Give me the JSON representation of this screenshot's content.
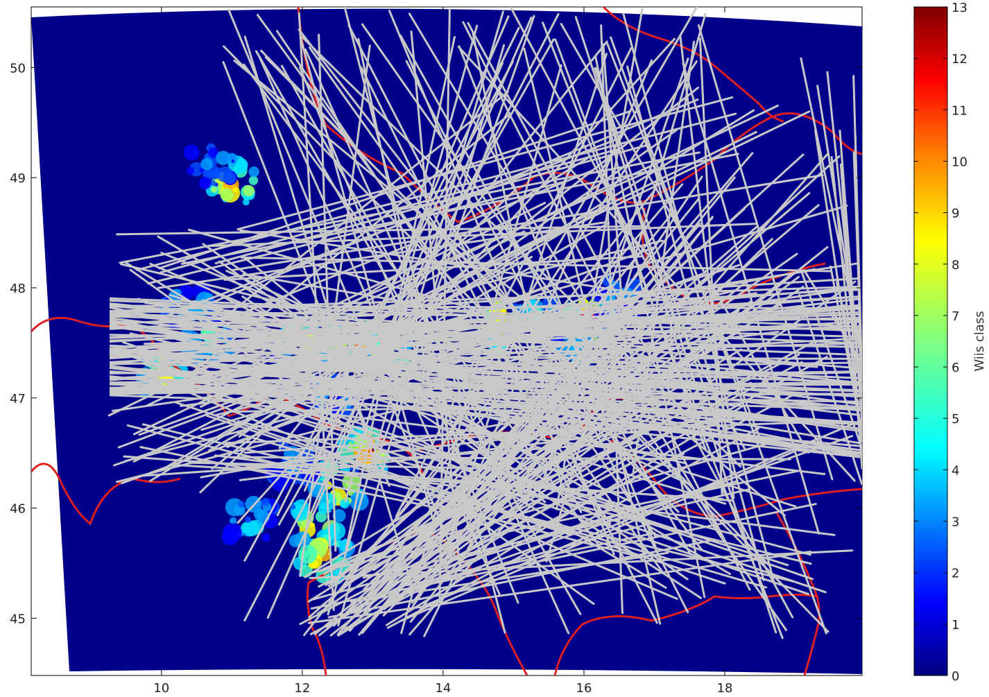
{
  "map": {
    "x_axis": {
      "tick_labels": [
        "10",
        "12",
        "14",
        "16",
        "18"
      ],
      "tick_values": [
        10,
        12,
        14,
        16,
        18
      ],
      "range": [
        8.15,
        19.95
      ]
    },
    "y_axis": {
      "tick_labels": [
        "45",
        "46",
        "47",
        "48",
        "49",
        "50"
      ],
      "tick_values": [
        45,
        46,
        47,
        48,
        49,
        50
      ],
      "range": [
        44.48,
        50.55
      ]
    },
    "background_color": "#00008b",
    "border_color": "#e02020",
    "track_color": "#c8c8c8",
    "grid": false
  },
  "colorbar": {
    "label": "Wiis class",
    "tick_labels": [
      "0",
      "1",
      "2",
      "3",
      "4",
      "5",
      "6",
      "7",
      "8",
      "9",
      "10",
      "11",
      "12",
      "13"
    ],
    "range": [
      0,
      13
    ],
    "colormap": "jet",
    "stops": [
      "#00007f",
      "#0000ff",
      "#007fff",
      "#00ffff",
      "#7fff7f",
      "#ffff00",
      "#ff7f00",
      "#ff0000",
      "#7f0000"
    ]
  },
  "precipitation_cells": [
    {
      "lon": 11.0,
      "lat": 48.95,
      "class": 10
    },
    {
      "lon": 10.75,
      "lat": 49.1,
      "class": 4
    },
    {
      "lon": 10.4,
      "lat": 47.8,
      "class": 5
    },
    {
      "lon": 10.05,
      "lat": 47.2,
      "class": 9
    },
    {
      "lon": 10.7,
      "lat": 47.55,
      "class": 7
    },
    {
      "lon": 12.0,
      "lat": 47.5,
      "class": 9
    },
    {
      "lon": 12.7,
      "lat": 47.5,
      "class": 11
    },
    {
      "lon": 13.2,
      "lat": 47.4,
      "class": 8
    },
    {
      "lon": 12.4,
      "lat": 47.05,
      "class": 4
    },
    {
      "lon": 12.9,
      "lat": 46.5,
      "class": 11
    },
    {
      "lon": 12.5,
      "lat": 46.2,
      "class": 10
    },
    {
      "lon": 12.2,
      "lat": 45.85,
      "class": 9
    },
    {
      "lon": 12.3,
      "lat": 45.55,
      "class": 10
    },
    {
      "lon": 11.9,
      "lat": 46.4,
      "class": 4
    },
    {
      "lon": 14.9,
      "lat": 47.65,
      "class": 11
    },
    {
      "lon": 15.35,
      "lat": 47.7,
      "class": 7
    },
    {
      "lon": 16.1,
      "lat": 47.7,
      "class": 12
    },
    {
      "lon": 16.4,
      "lat": 47.9,
      "class": 4
    },
    {
      "lon": 15.9,
      "lat": 47.45,
      "class": 5
    },
    {
      "lon": 11.3,
      "lat": 45.9,
      "class": 5
    }
  ]
}
